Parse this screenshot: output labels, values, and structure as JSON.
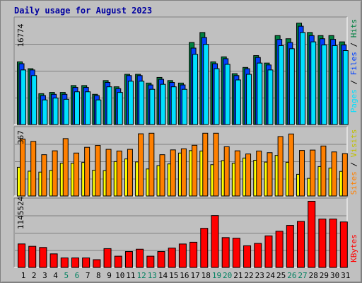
{
  "chart_data": [
    {
      "type": "bar",
      "title": "Daily usage for August 2023",
      "categories": [
        "1",
        "2",
        "3",
        "4",
        "5",
        "6",
        "7",
        "8",
        "9",
        "10",
        "11",
        "12",
        "13",
        "14",
        "15",
        "16",
        "17",
        "18",
        "19",
        "20",
        "21",
        "22",
        "23",
        "24",
        "25",
        "26",
        "27",
        "28",
        "29",
        "30",
        "31"
      ],
      "weekend_days": [
        "5",
        "6",
        "12",
        "13",
        "19",
        "20",
        "26",
        "27"
      ],
      "ylim": [
        0,
        16774
      ],
      "ymax_label": "16774",
      "grid": true,
      "series": [
        {
          "name": "Hits",
          "color": "#008040",
          "values": [
            10100,
            9000,
            5000,
            5200,
            5200,
            6300,
            6300,
            4900,
            7100,
            6100,
            8100,
            8100,
            6700,
            7600,
            7100,
            6700,
            13200,
            14800,
            10100,
            10900,
            8200,
            9200,
            11100,
            9900,
            14300,
            13800,
            16300,
            14800,
            14300,
            14300,
            13300
          ]
        },
        {
          "name": "Files",
          "color": "#0040ff",
          "values": [
            9800,
            8800,
            4700,
            4900,
            4900,
            6000,
            6000,
            4700,
            6800,
            5800,
            7900,
            7900,
            6400,
            7300,
            6800,
            6400,
            12300,
            14000,
            9800,
            10600,
            7900,
            9000,
            10800,
            9600,
            13700,
            13200,
            15800,
            14300,
            13800,
            13700,
            12800
          ]
        },
        {
          "name": "Pages",
          "color": "#00e0ff",
          "values": [
            8800,
            7900,
            4000,
            4300,
            4100,
            5300,
            5300,
            4000,
            6100,
            5200,
            7000,
            7000,
            5700,
            6500,
            6100,
            5700,
            11300,
            12900,
            9000,
            9700,
            7200,
            8100,
            9900,
            8800,
            12700,
            12200,
            14800,
            13300,
            12800,
            12700,
            11900
          ]
        }
      ]
    },
    {
      "type": "bar",
      "ylim": [
        0,
        367
      ],
      "ymax_label": "367",
      "grid": true,
      "series": [
        {
          "name": "Visits",
          "color": "#ffff00",
          "values": [
            157,
            136,
            131,
            140,
            179,
            179,
            183,
            141,
            139,
            188,
            202,
            186,
            148,
            166,
            175,
            234,
            247,
            245,
            171,
            193,
            179,
            207,
            195,
            185,
            221,
            184,
            119,
            97,
            161,
            153,
            135
          ]
        },
        {
          "name": "Sites",
          "color": "#ff8000",
          "values": [
            309,
            297,
            225,
            246,
            312,
            234,
            265,
            275,
            254,
            245,
            254,
            338,
            341,
            225,
            251,
            257,
            276,
            341,
            341,
            268,
            246,
            229,
            245,
            236,
            323,
            337,
            248,
            250,
            272,
            240,
            231
          ]
        }
      ]
    },
    {
      "type": "bar",
      "ylim": [
        0,
        1145524
      ],
      "ymax_label": "1145524",
      "grid": true,
      "series": [
        {
          "name": "KBytes",
          "color": "#ff0000",
          "values": [
            411000,
            370000,
            350000,
            240000,
            170000,
            170000,
            170000,
            140000,
            330000,
            200000,
            280000,
            320000,
            200000,
            280000,
            340000,
            410000,
            440000,
            680000,
            900000,
            520000,
            510000,
            380000,
            420000,
            550000,
            630000,
            730000,
            800000,
            1145524,
            840000,
            840000,
            790000
          ]
        }
      ]
    }
  ]
}
